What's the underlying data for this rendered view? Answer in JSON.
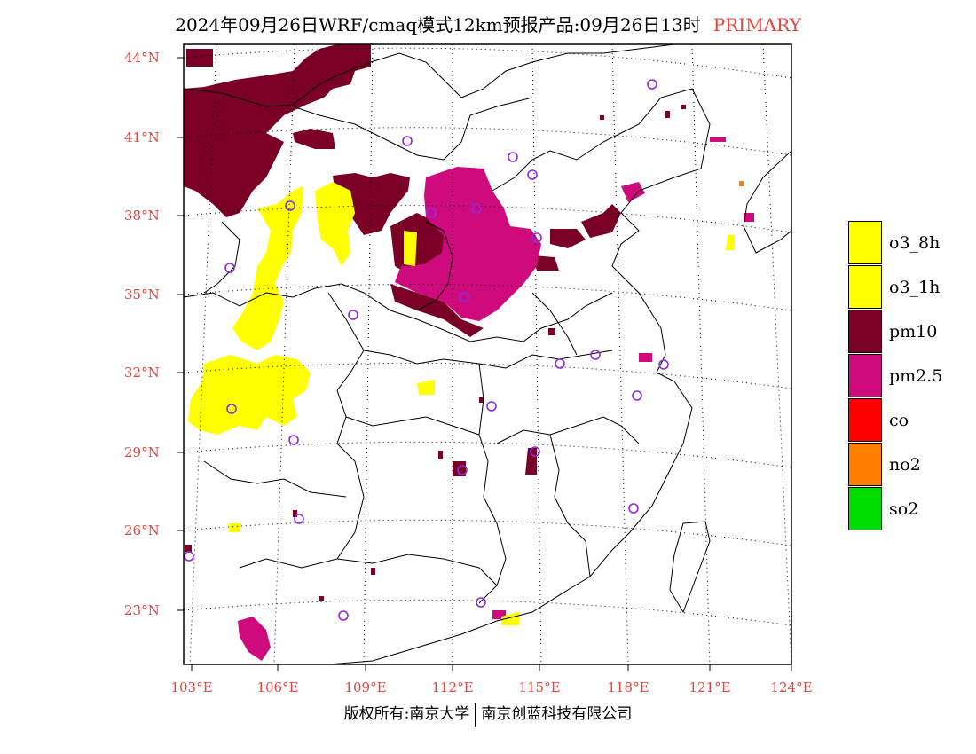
{
  "title": {
    "main": "2024年09月26日WRF/cmaq模式12km预报产品:09月26日13时",
    "tag": "PRIMARY"
  },
  "map": {
    "latitudes": [
      "44°N",
      "41°N",
      "38°N",
      "35°N",
      "32°N",
      "29°N",
      "26°N",
      "23°N"
    ],
    "longitudes": [
      "103°E",
      "106°E",
      "109°E",
      "112°E",
      "115°E",
      "118°E",
      "121°E",
      "124°E"
    ],
    "grid": "dotted",
    "station_marker": "circle"
  },
  "legend": {
    "items": [
      {
        "label": "o3_8h",
        "color": "#ffff00"
      },
      {
        "label": "o3_1h",
        "color": "#ffff00"
      },
      {
        "label": "pm10",
        "color": "#7a0026"
      },
      {
        "label": "pm2.5",
        "color": "#cf0a7c"
      },
      {
        "label": "co",
        "color": "#ff0000"
      },
      {
        "label": "no2",
        "color": "#ff8000"
      },
      {
        "label": "so2",
        "color": "#00dd00"
      }
    ]
  },
  "footer": {
    "left": "版权所有:南京大学",
    "right": "南京创蓝科技有限公司"
  },
  "colors": {
    "accent": "#e8433c",
    "station": "#8a2be2"
  }
}
